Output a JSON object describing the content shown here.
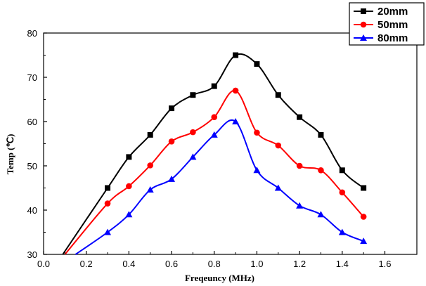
{
  "chart_data": {
    "type": "line",
    "title": "",
    "xlabel": "Freqeuncy (MHz)",
    "ylabel": "Temp (℃)",
    "xlim": [
      0.0,
      1.75
    ],
    "ylim": [
      30,
      80
    ],
    "xticks": [
      0.0,
      0.2,
      0.4,
      0.6,
      0.8,
      1.0,
      1.2,
      1.4,
      1.6
    ],
    "yticks": [
      30,
      40,
      50,
      60,
      70,
      80
    ],
    "xtick_labels": [
      "0.0",
      "0.2",
      "0.4",
      "0.6",
      "0.8",
      "1.0",
      "1.2",
      "1.4",
      "1.6"
    ],
    "ytick_labels": [
      "30",
      "40",
      "50",
      "60",
      "70",
      "80"
    ],
    "legend_position": "top-right",
    "grid": false,
    "series": [
      {
        "name": "20mm",
        "color": "#000000",
        "marker": "square",
        "x": [
          0.3,
          0.4,
          0.5,
          0.6,
          0.7,
          0.8,
          0.9,
          1.0,
          1.1,
          1.2,
          1.3,
          1.4,
          1.5
        ],
        "values": [
          45,
          52,
          57,
          63,
          66,
          68,
          75,
          73,
          66,
          61,
          57,
          49,
          45
        ],
        "extension_start": [
          0.09,
          30
        ]
      },
      {
        "name": "50mm",
        "color": "#ff0000",
        "marker": "circle",
        "x": [
          0.3,
          0.4,
          0.5,
          0.6,
          0.7,
          0.8,
          0.9,
          1.0,
          1.1,
          1.2,
          1.3,
          1.4,
          1.5
        ],
        "values": [
          41.5,
          45.4,
          50.1,
          55.5,
          57.6,
          61,
          67,
          57.5,
          54.6,
          50,
          49,
          44,
          38.5
        ],
        "extension_start": [
          0.1,
          30
        ]
      },
      {
        "name": "80mm",
        "color": "#0000ff",
        "marker": "triangle",
        "x": [
          0.3,
          0.4,
          0.5,
          0.6,
          0.7,
          0.8,
          0.9,
          1.0,
          1.1,
          1.2,
          1.3,
          1.4,
          1.5
        ],
        "values": [
          35,
          39,
          44.6,
          47,
          52,
          57,
          60,
          49,
          45,
          41,
          39,
          35,
          33
        ],
        "extension_start": [
          0.15,
          30
        ]
      }
    ]
  }
}
